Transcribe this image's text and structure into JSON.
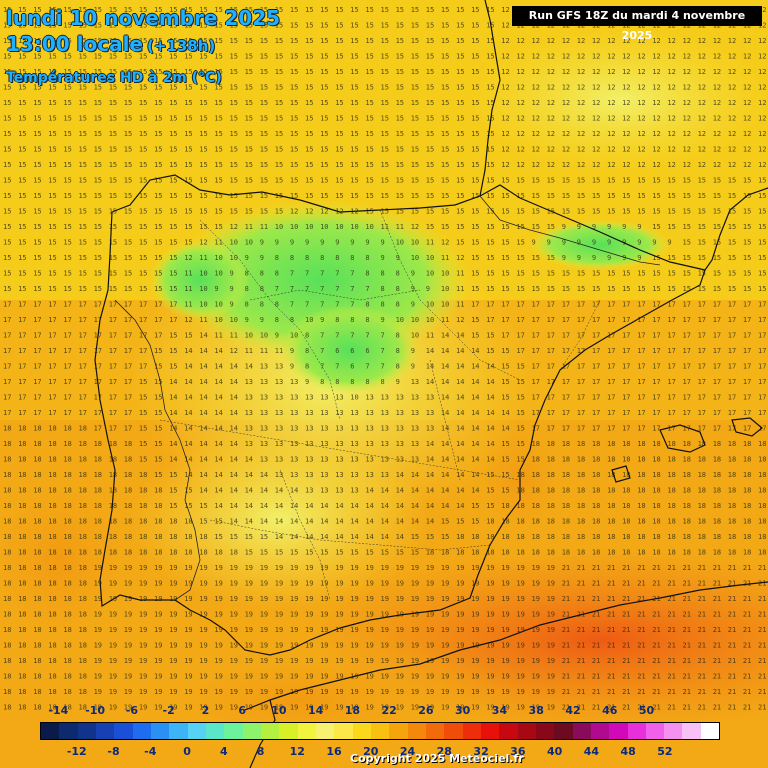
{
  "header": {
    "date": "lundi 10 novembre 2025",
    "hour": "13:00 locale",
    "hour_offset": "(+138h)",
    "parameter": "Températures HD à 2m (°C)",
    "run": "Run GFS 18Z du mardi 4 novembre 2025"
  },
  "legend": {
    "top_labels": [
      "-14",
      "-10",
      "-6",
      "-2",
      "2",
      "6",
      "10",
      "14",
      "18",
      "22",
      "26",
      "30",
      "34",
      "38",
      "42",
      "46",
      "50"
    ],
    "bottom_labels": [
      "-12",
      "-8",
      "-4",
      "0",
      "4",
      "8",
      "12",
      "16",
      "20",
      "24",
      "28",
      "32",
      "36",
      "40",
      "44",
      "48",
      "52"
    ],
    "colors": [
      "#0a1a4a",
      "#0c2a6e",
      "#10348c",
      "#1640b4",
      "#1a50d8",
      "#1e6cf0",
      "#2a90f4",
      "#3cb4f6",
      "#56d2f4",
      "#5ae6c8",
      "#6cf29c",
      "#8cf46c",
      "#b4f040",
      "#d8f028",
      "#f0f43c",
      "#f8f070",
      "#fce848",
      "#fcd81c",
      "#f8c010",
      "#f6a40c",
      "#f4880a",
      "#f26a0a",
      "#f04c0a",
      "#ee2e0a",
      "#e8100a",
      "#c80810",
      "#a80814",
      "#88081a",
      "#6c0a20",
      "#8a0a5c",
      "#b00a90",
      "#d00ab8",
      "#e830d8",
      "#f060e8",
      "#f490f0",
      "#f8c0f6",
      "#ffffff"
    ]
  },
  "copyright": "Copyright 2025 Meteociel.fr",
  "map_grid": {
    "rows": [
      {
        "y": 0,
        "runs": [
          [
            15,
            0,
            0
          ],
          [
            15,
            0,
            0
          ],
          [
            14,
            40,
            0
          ]
        ]
      }
    ]
  }
}
